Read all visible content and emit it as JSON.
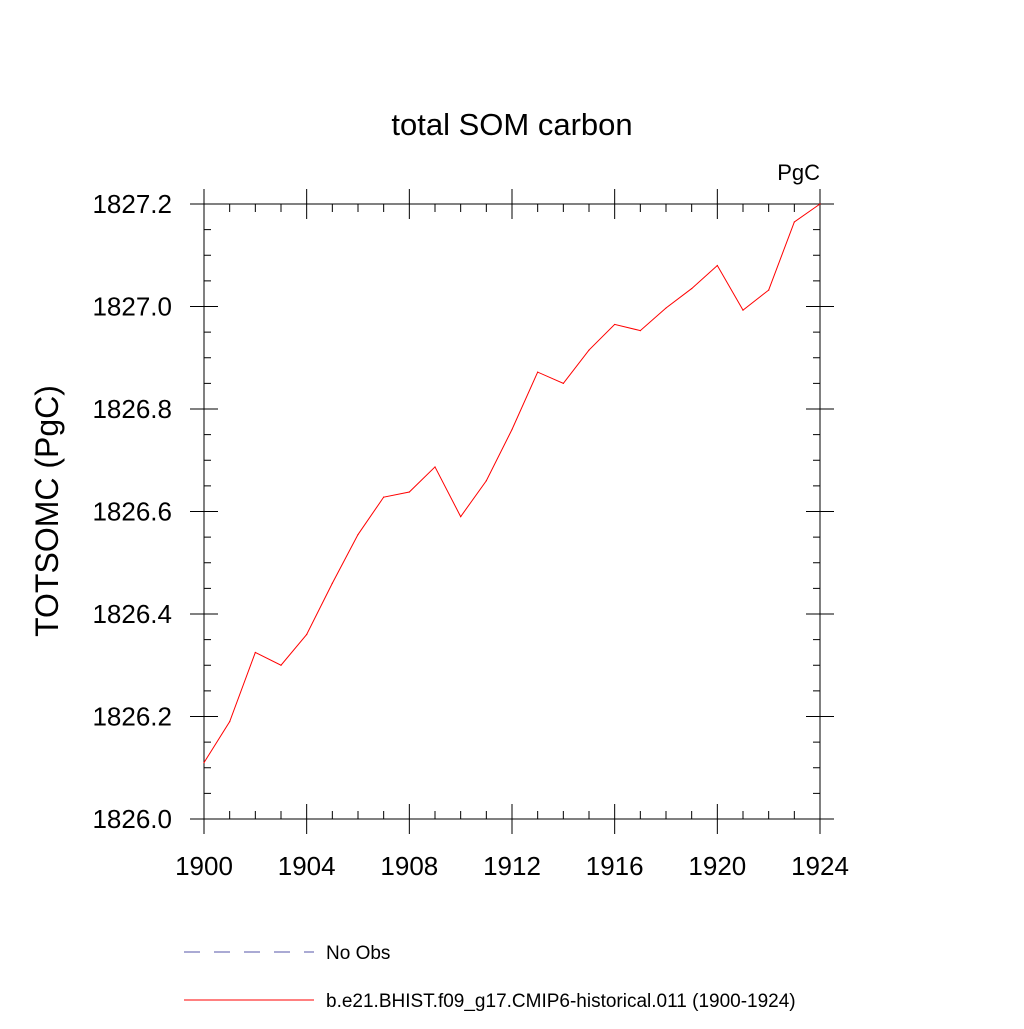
{
  "chart_data": {
    "type": "line",
    "title": "total SOM carbon",
    "units_label": "PgC",
    "ylabel": "TOTSOMC  (PgC)",
    "xlabel": "",
    "xlim": [
      1900,
      1924
    ],
    "ylim": [
      1826.0,
      1827.2
    ],
    "x_ticks": [
      "1900",
      "1904",
      "1908",
      "1912",
      "1916",
      "1920",
      "1924"
    ],
    "y_ticks": [
      "1826.0",
      "1826.2",
      "1826.4",
      "1826.6",
      "1826.8",
      "1827.0",
      "1827.2"
    ],
    "grid": false,
    "legend_position": "bottom",
    "series": [
      {
        "name": "No Obs",
        "color": "#5555aa",
        "style": "dashed",
        "values": []
      },
      {
        "name": "b.e21.BHIST.f09_g17.CMIP6-historical.011 (1900-1924)",
        "color": "#ff0000",
        "style": "solid",
        "x": [
          1900,
          1901,
          1902,
          1903,
          1904,
          1905,
          1906,
          1907,
          1908,
          1909,
          1910,
          1911,
          1912,
          1913,
          1914,
          1915,
          1916,
          1917,
          1918,
          1919,
          1920,
          1921,
          1922,
          1923,
          1924
        ],
        "values": [
          1826.11,
          1826.19,
          1826.325,
          1826.3,
          1826.36,
          1826.46,
          1826.555,
          1826.628,
          1826.638,
          1826.687,
          1826.59,
          1826.66,
          1826.76,
          1826.872,
          1826.85,
          1826.915,
          1826.965,
          1826.953,
          1826.997,
          1827.035,
          1827.08,
          1826.993,
          1827.032,
          1827.165,
          1827.2
        ]
      }
    ]
  }
}
